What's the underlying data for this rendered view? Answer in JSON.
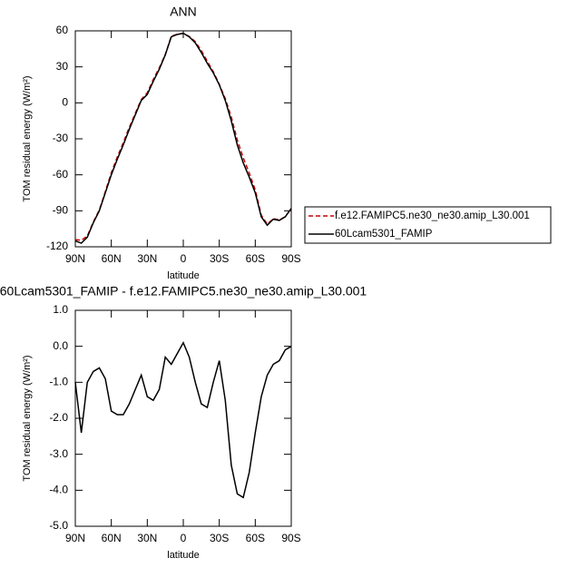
{
  "chart_data": [
    {
      "type": "line",
      "title": "ANN",
      "xlabel": "latitude",
      "ylabel": "TOM residual energy (W/m²)",
      "x": [
        90,
        85,
        80,
        75,
        70,
        65,
        60,
        55,
        50,
        45,
        40,
        35,
        30,
        25,
        20,
        15,
        10,
        5,
        0,
        -5,
        -10,
        -15,
        -20,
        -25,
        -30,
        -35,
        -40,
        -45,
        -50,
        -55,
        -60,
        -65,
        -70,
        -75,
        -80,
        -85,
        -90
      ],
      "series": [
        {
          "name": "f.e12.FAMIPC5.ne30_ne30.amip_L30.001",
          "color": "#cc0000",
          "dashed": true,
          "values": [
            -114,
            -114.6,
            -111,
            -99.3,
            -89.4,
            -74.1,
            -58.2,
            -45.1,
            -33.1,
            -20.4,
            -8.8,
            2.8,
            8.4,
            19.5,
            29.2,
            40.3,
            55.5,
            57.2,
            57.9,
            55.3,
            51,
            43.6,
            34.7,
            26,
            15.4,
            3.5,
            -11.7,
            -30.9,
            -45.8,
            -58.5,
            -72.6,
            -93.6,
            -101.2,
            -96.5,
            -97.6,
            -94.9,
            -88
          ]
        },
        {
          "name": "60Lcam5301_FAMIP",
          "color": "#000000",
          "dashed": false,
          "values": [
            -115,
            -117,
            -112,
            -100,
            -90,
            -75,
            -60,
            -47,
            -35,
            -22,
            -10,
            2,
            7,
            18,
            28,
            40,
            55,
            57,
            58,
            55,
            50,
            42,
            33,
            25,
            15,
            2,
            -15,
            -35,
            -50,
            -62,
            -75,
            -95,
            -102,
            -97,
            -98,
            -95,
            -88
          ]
        }
      ],
      "xlim": [
        90,
        -90
      ],
      "xticks": [
        {
          "value": 90,
          "label": "90N"
        },
        {
          "value": 60,
          "label": "60N"
        },
        {
          "value": 30,
          "label": "30N"
        },
        0,
        {
          "value": -30,
          "label": "30S"
        },
        {
          "value": -60,
          "label": "60S"
        },
        {
          "value": -90,
          "label": "90S"
        }
      ],
      "ylim": [
        -120,
        60
      ],
      "yticks": [
        60,
        30,
        0,
        -30,
        -60,
        -90,
        -120
      ],
      "legend": "right"
    },
    {
      "type": "line",
      "title": "60Lcam5301_FAMIP - f.e12.FAMIPC5.ne30_ne30.amip_L30.001",
      "xlabel": "latitude",
      "ylabel": "TOM residual energy (W/m²)",
      "x": [
        90,
        85,
        80,
        75,
        70,
        65,
        60,
        55,
        50,
        45,
        40,
        35,
        30,
        25,
        20,
        15,
        10,
        5,
        0,
        -5,
        -10,
        -15,
        -20,
        -25,
        -30,
        -35,
        -40,
        -45,
        -50,
        -55,
        -60,
        -65,
        -70,
        -75,
        -80,
        -85,
        -90
      ],
      "series": [
        {
          "color": "#000000",
          "dashed": false,
          "values": [
            -1.0,
            -2.4,
            -1.0,
            -0.7,
            -0.6,
            -0.9,
            -1.8,
            -1.9,
            -1.9,
            -1.6,
            -1.2,
            -0.8,
            -1.4,
            -1.5,
            -1.2,
            -0.3,
            -0.5,
            -0.2,
            0.1,
            -0.3,
            -1.0,
            -1.6,
            -1.7,
            -1.0,
            -0.4,
            -1.5,
            -3.3,
            -4.1,
            -4.2,
            -3.5,
            -2.4,
            -1.4,
            -0.8,
            -0.5,
            -0.4,
            -0.1,
            0.0
          ]
        }
      ],
      "xlim": [
        90,
        -90
      ],
      "xticks": [
        {
          "value": 90,
          "label": "90N"
        },
        {
          "value": 60,
          "label": "60N"
        },
        {
          "value": 30,
          "label": "30N"
        },
        0,
        {
          "value": -30,
          "label": "30S"
        },
        {
          "value": -60,
          "label": "60S"
        },
        {
          "value": -90,
          "label": "90S"
        }
      ],
      "ylim": [
        -5,
        1
      ],
      "yticks": [
        {
          "value": 1,
          "label": "1.0"
        },
        {
          "value": 0,
          "label": "0.0"
        },
        {
          "value": -1,
          "label": "-1.0"
        },
        {
          "value": -2,
          "label": "-2.0"
        },
        {
          "value": -3,
          "label": "-3.0"
        },
        {
          "value": -4,
          "label": "-4.0"
        },
        {
          "value": -5,
          "label": "-5.0"
        }
      ]
    }
  ]
}
